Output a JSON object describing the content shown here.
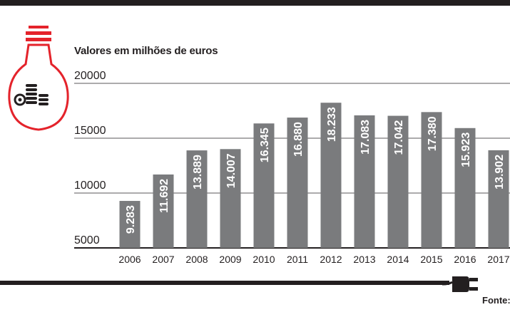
{
  "subtitle": "Valores em milhões de euros",
  "footer_source": "Fonte:",
  "icons": [
    "lightbulb-coins-icon",
    "power-plug-icon"
  ],
  "colors": {
    "bar": "#7a7b7d",
    "accent": "#e4232b",
    "text": "#231f20",
    "grid": "#231f20"
  },
  "chart_data": {
    "type": "bar",
    "title": "",
    "subtitle": "Valores em milhões de euros",
    "xlabel": "",
    "ylabel": "",
    "ylim": [
      5000,
      20000
    ],
    "yticks": [
      20000,
      15000,
      10000,
      5000
    ],
    "ytick_labels": [
      "20000",
      "15000",
      "10000",
      "5000"
    ],
    "grid": true,
    "categories": [
      "2006",
      "2007",
      "2008",
      "2009",
      "2010",
      "2011",
      "2012",
      "2013",
      "2014",
      "2015",
      "2016",
      "2017"
    ],
    "values": [
      9283,
      11692,
      13889,
      14007,
      16345,
      16880,
      18233,
      17083,
      17042,
      17380,
      15923,
      13902
    ],
    "data_labels": [
      "9.283",
      "11.692",
      "13.889",
      "14.007",
      "16.345",
      "16.880",
      "18.233",
      "17.083",
      "17.042",
      "17.380",
      "15.923",
      "13.902"
    ]
  }
}
